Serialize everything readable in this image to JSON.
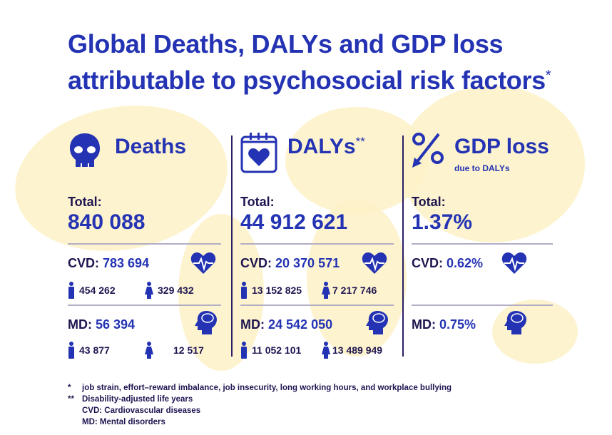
{
  "title_line1": "Global Deaths, DALYs and GDP loss",
  "title_line2": "attributable to psychosocial risk factors",
  "title_mark": "*",
  "columns": [
    {
      "header": "Deaths",
      "header_mark": "",
      "sub": "",
      "total_label": "Total:",
      "total": "840 088",
      "cvd_label": "CVD:",
      "cvd": "783 694",
      "cvd_male": "454 262",
      "cvd_female": "329 432",
      "md_label": "MD:",
      "md": "56 394",
      "md_male": "43 877",
      "md_female": "12 517"
    },
    {
      "header": "DALYs",
      "header_mark": "**",
      "sub": "",
      "total_label": "Total:",
      "total": "44 912 621",
      "cvd_label": "CVD:",
      "cvd": "20 370 571",
      "cvd_male": "13 152 825",
      "cvd_female": "7 217 746",
      "md_label": "MD:",
      "md": "24 542 050",
      "md_male": "11 052 101",
      "md_female": "13 489 949"
    },
    {
      "header": "GDP loss",
      "header_mark": "",
      "sub": "due to DALYs",
      "total_label": "Total:",
      "total": "1.37%",
      "cvd_label": "CVD:",
      "cvd": "0.62%",
      "md_label": "MD:",
      "md": "0.75%"
    }
  ],
  "footnotes": [
    {
      "mark": "*",
      "text": "job strain, effort–reward imbalance, job insecurity, long working hours, and workplace bullying"
    },
    {
      "mark": "**",
      "text": "Disability-adjusted life years"
    },
    {
      "mark": "",
      "text": "CVD: Cardiovascular diseases"
    },
    {
      "mark": "",
      "text": "MD: Mental disorders"
    }
  ],
  "colors": {
    "accent": "#2433b3",
    "text": "#1e1550",
    "map": "#fdf1c7"
  }
}
